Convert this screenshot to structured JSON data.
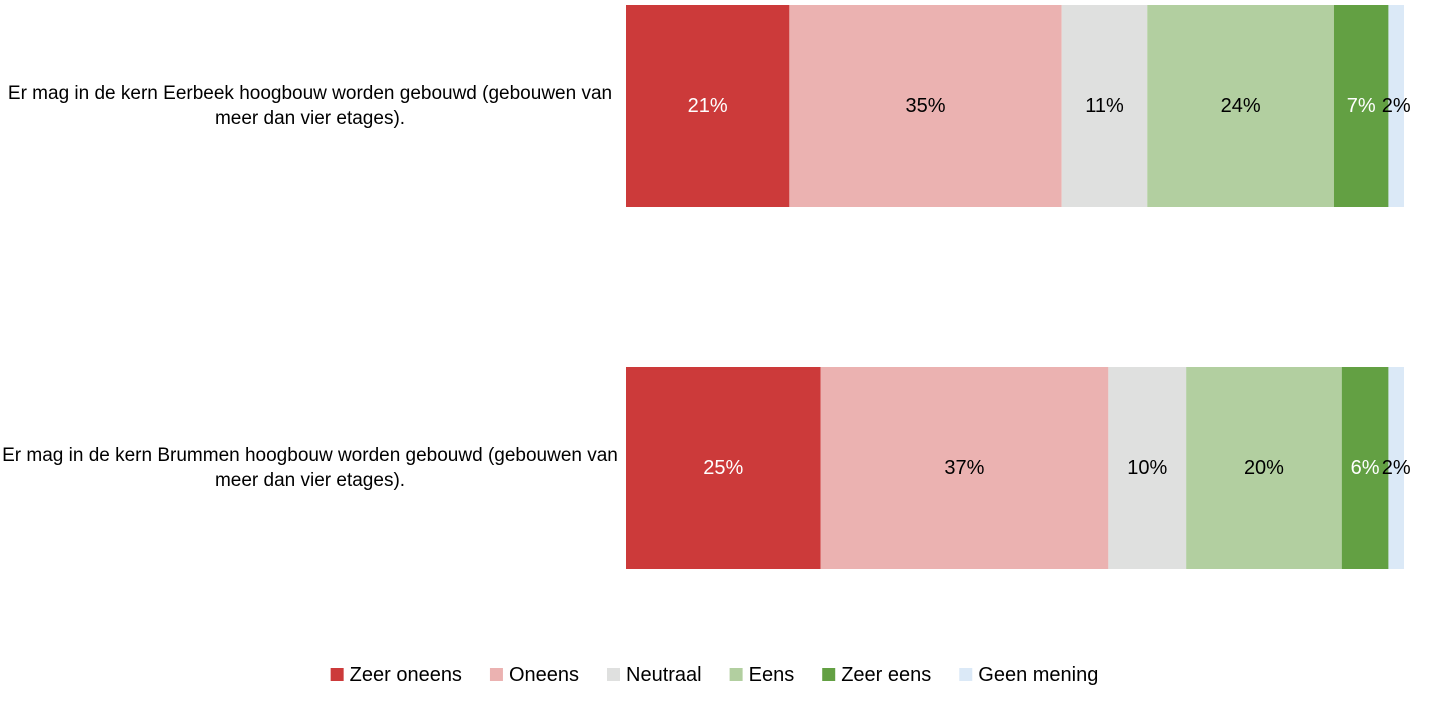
{
  "chart_data": {
    "type": "stacked_bar_horizontal",
    "categories": [
      "Er mag in de kern Eerbeek hoogbouw worden gebouwd (gebouwen van meer dan vier etages).",
      "Er mag in de kern Brummen hoogbouw worden gebouwd (gebouwen van meer dan vier etages)."
    ],
    "series": [
      {
        "name": "Zeer oneens",
        "color": "#cc3a3a",
        "label_color": "#ffffff",
        "values": [
          21,
          25
        ],
        "value_labels": [
          "21%",
          "25%"
        ]
      },
      {
        "name": "Oneens",
        "color": "#ebb2b1",
        "label_color": "#000000",
        "values": [
          35,
          37
        ],
        "value_labels": [
          "35%",
          "37%"
        ]
      },
      {
        "name": "Neutraal",
        "color": "#dfe0df",
        "label_color": "#000000",
        "values": [
          11,
          10
        ],
        "value_labels": [
          "11%",
          "10%"
        ]
      },
      {
        "name": "Eens",
        "color": "#b2cfa0",
        "label_color": "#000000",
        "values": [
          24,
          20
        ],
        "value_labels": [
          "24%",
          "20%"
        ]
      },
      {
        "name": "Zeer eens",
        "color": "#63a043",
        "label_color": "#ffffff",
        "values": [
          7,
          6
        ],
        "value_labels": [
          "7%",
          "6%"
        ]
      },
      {
        "name": "Geen mening",
        "color": "#dbe9f7",
        "label_color": "#000000",
        "values": [
          2,
          2
        ],
        "value_labels": [
          "2%",
          "2%"
        ]
      }
    ],
    "legend": "bottom"
  }
}
